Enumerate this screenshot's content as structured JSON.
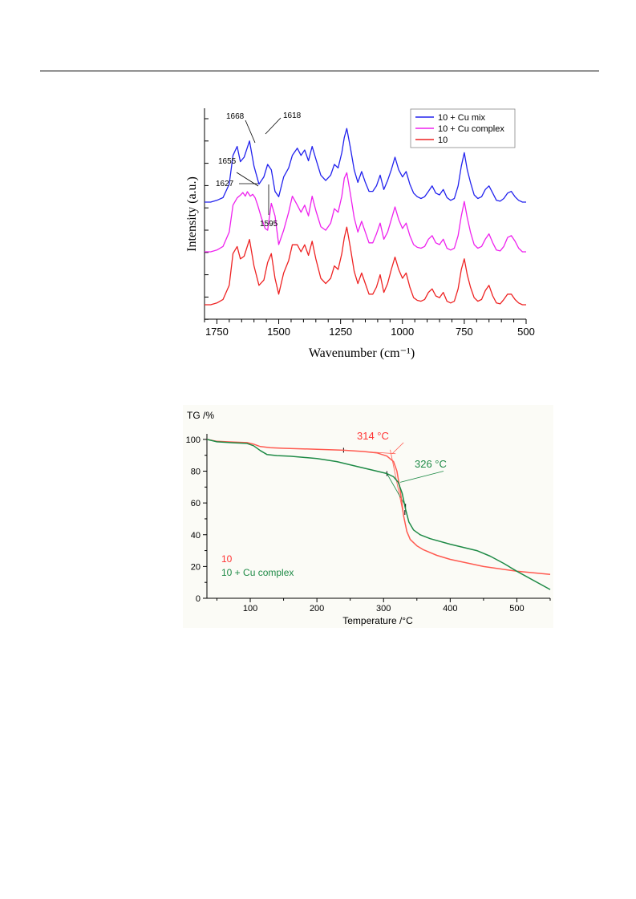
{
  "chart_data": [
    {
      "type": "line",
      "xlabel": "Wavenumber (cm⁻¹)",
      "ylabel": "Intensity (a.u.)",
      "xlim": [
        1800,
        500
      ],
      "x_reversed": true,
      "x_ticks": [
        "1750",
        "1500",
        "1250",
        "1000",
        "750",
        "500"
      ],
      "legend_position": "top-right",
      "series": [
        {
          "name": "10 + Cu mix",
          "color": "#2222ee",
          "x": [
            1800,
            1775,
            1750,
            1725,
            1700,
            1685,
            1668,
            1655,
            1640,
            1618,
            1600,
            1580,
            1560,
            1545,
            1530,
            1515,
            1500,
            1480,
            1460,
            1445,
            1425,
            1410,
            1395,
            1380,
            1365,
            1350,
            1330,
            1310,
            1290,
            1275,
            1260,
            1245,
            1235,
            1225,
            1210,
            1195,
            1180,
            1165,
            1150,
            1135,
            1120,
            1105,
            1090,
            1075,
            1060,
            1045,
            1030,
            1015,
            1000,
            985,
            970,
            955,
            940,
            925,
            910,
            895,
            880,
            865,
            850,
            835,
            820,
            805,
            790,
            775,
            762,
            750,
            738,
            725,
            710,
            695,
            680,
            665,
            650,
            635,
            620,
            605,
            590,
            575,
            560,
            545,
            530,
            515,
            500
          ],
          "y": [
            0.0,
            0.0,
            0.02,
            0.05,
            0.2,
            0.52,
            0.62,
            0.45,
            0.5,
            0.68,
            0.4,
            0.2,
            0.28,
            0.42,
            0.36,
            0.12,
            0.06,
            0.28,
            0.38,
            0.52,
            0.6,
            0.52,
            0.58,
            0.46,
            0.62,
            0.48,
            0.3,
            0.24,
            0.3,
            0.42,
            0.38,
            0.55,
            0.72,
            0.82,
            0.6,
            0.36,
            0.22,
            0.34,
            0.22,
            0.12,
            0.12,
            0.18,
            0.3,
            0.14,
            0.24,
            0.36,
            0.5,
            0.36,
            0.28,
            0.34,
            0.2,
            0.1,
            0.06,
            0.04,
            0.06,
            0.12,
            0.18,
            0.1,
            0.08,
            0.14,
            0.05,
            0.02,
            0.04,
            0.18,
            0.4,
            0.55,
            0.36,
            0.22,
            0.08,
            0.04,
            0.06,
            0.14,
            0.18,
            0.1,
            0.02,
            0.01,
            0.04,
            0.1,
            0.12,
            0.06,
            0.02,
            0.0,
            0.0
          ]
        },
        {
          "name": "10 + Cu complex",
          "color": "#ee22ee",
          "x": [
            1800,
            1775,
            1750,
            1725,
            1700,
            1685,
            1668,
            1655,
            1645,
            1635,
            1627,
            1615,
            1605,
            1595,
            1585,
            1570,
            1555,
            1545,
            1530,
            1515,
            1500,
            1480,
            1460,
            1445,
            1425,
            1410,
            1395,
            1380,
            1365,
            1350,
            1330,
            1310,
            1290,
            1275,
            1260,
            1245,
            1235,
            1225,
            1210,
            1195,
            1180,
            1165,
            1150,
            1135,
            1120,
            1105,
            1090,
            1075,
            1060,
            1045,
            1030,
            1015,
            1000,
            985,
            970,
            955,
            940,
            925,
            910,
            895,
            880,
            865,
            850,
            835,
            820,
            805,
            790,
            775,
            762,
            750,
            738,
            725,
            710,
            695,
            680,
            665,
            650,
            635,
            620,
            605,
            590,
            575,
            560,
            545,
            530,
            515,
            500
          ],
          "y": [
            0.0,
            0.0,
            0.02,
            0.06,
            0.22,
            0.52,
            0.6,
            0.63,
            0.66,
            0.62,
            0.67,
            0.62,
            0.64,
            0.6,
            0.52,
            0.38,
            0.26,
            0.24,
            0.54,
            0.4,
            0.08,
            0.24,
            0.44,
            0.62,
            0.52,
            0.44,
            0.52,
            0.4,
            0.62,
            0.46,
            0.28,
            0.24,
            0.32,
            0.48,
            0.44,
            0.62,
            0.82,
            0.88,
            0.64,
            0.38,
            0.22,
            0.34,
            0.22,
            0.1,
            0.1,
            0.2,
            0.32,
            0.14,
            0.22,
            0.36,
            0.5,
            0.36,
            0.26,
            0.32,
            0.18,
            0.08,
            0.05,
            0.04,
            0.06,
            0.14,
            0.18,
            0.1,
            0.08,
            0.14,
            0.04,
            0.02,
            0.04,
            0.18,
            0.4,
            0.56,
            0.38,
            0.22,
            0.08,
            0.04,
            0.06,
            0.14,
            0.2,
            0.1,
            0.02,
            0.01,
            0.06,
            0.16,
            0.18,
            0.12,
            0.04,
            0.0,
            0.0
          ]
        },
        {
          "name": "10",
          "color": "#ee2222",
          "x": [
            1800,
            1775,
            1750,
            1725,
            1700,
            1685,
            1668,
            1655,
            1640,
            1618,
            1600,
            1580,
            1560,
            1545,
            1530,
            1515,
            1500,
            1480,
            1460,
            1445,
            1425,
            1410,
            1395,
            1380,
            1365,
            1350,
            1330,
            1310,
            1290,
            1275,
            1260,
            1245,
            1235,
            1225,
            1210,
            1195,
            1180,
            1165,
            1150,
            1135,
            1120,
            1105,
            1090,
            1075,
            1060,
            1045,
            1030,
            1015,
            1000,
            985,
            970,
            955,
            940,
            925,
            910,
            895,
            880,
            865,
            850,
            835,
            820,
            805,
            790,
            775,
            762,
            750,
            738,
            725,
            710,
            695,
            680,
            665,
            650,
            635,
            620,
            605,
            590,
            575,
            560,
            545,
            530,
            515,
            500
          ],
          "y": [
            0.0,
            0.0,
            0.02,
            0.06,
            0.22,
            0.58,
            0.66,
            0.52,
            0.55,
            0.74,
            0.44,
            0.22,
            0.28,
            0.48,
            0.58,
            0.3,
            0.12,
            0.36,
            0.5,
            0.68,
            0.68,
            0.6,
            0.68,
            0.56,
            0.72,
            0.52,
            0.3,
            0.24,
            0.3,
            0.44,
            0.4,
            0.58,
            0.76,
            0.88,
            0.64,
            0.38,
            0.24,
            0.36,
            0.24,
            0.12,
            0.12,
            0.2,
            0.34,
            0.14,
            0.24,
            0.4,
            0.54,
            0.4,
            0.3,
            0.36,
            0.2,
            0.08,
            0.05,
            0.04,
            0.06,
            0.14,
            0.18,
            0.1,
            0.08,
            0.14,
            0.04,
            0.02,
            0.04,
            0.18,
            0.4,
            0.52,
            0.34,
            0.2,
            0.08,
            0.04,
            0.06,
            0.16,
            0.22,
            0.1,
            0.02,
            0.01,
            0.06,
            0.12,
            0.12,
            0.06,
            0.02,
            0.0,
            0.0
          ]
        }
      ],
      "annotations": [
        "1668",
        "1618",
        "1655",
        "1627",
        "1595"
      ]
    },
    {
      "type": "line",
      "title": "TG /%",
      "xlabel": "Temperature /°C",
      "ylabel": "TG /%",
      "xlim": [
        35,
        550
      ],
      "ylim": [
        0,
        105
      ],
      "x_ticks": [
        "100",
        "200",
        "300",
        "400",
        "500"
      ],
      "y_ticks": [
        "0",
        "20",
        "40",
        "60",
        "80",
        "100"
      ],
      "background": "#fbfbf6",
      "series": [
        {
          "name": "10",
          "color": "#ff5a50",
          "x": [
            35,
            50,
            75,
            95,
            105,
            115,
            130,
            150,
            200,
            240,
            270,
            290,
            305,
            315,
            320,
            325,
            330,
            335,
            340,
            350,
            360,
            380,
            400,
            450,
            500,
            550
          ],
          "y": [
            100,
            98.8,
            98.3,
            98.0,
            97.0,
            95.5,
            94.8,
            94.4,
            93.8,
            93.2,
            92.4,
            91.5,
            89.5,
            86.0,
            80.0,
            68.0,
            52.0,
            42.0,
            37.0,
            33.0,
            30.5,
            27.0,
            24.5,
            20.0,
            17.0,
            15.0
          ]
        },
        {
          "name": "10 + Cu complex",
          "color": "#1e8a46",
          "x": [
            35,
            50,
            75,
            95,
            105,
            115,
            125,
            140,
            160,
            200,
            230,
            260,
            290,
            305,
            315,
            322,
            328,
            333,
            338,
            345,
            355,
            370,
            400,
            440,
            460,
            480,
            500,
            550
          ],
          "y": [
            100,
            98.5,
            97.9,
            97.5,
            96.0,
            93.0,
            90.5,
            89.8,
            89.4,
            88.0,
            86.0,
            83.0,
            80.0,
            78.5,
            76.5,
            73.0,
            66.0,
            56.0,
            48.0,
            43.0,
            40.0,
            37.5,
            34.0,
            30.0,
            26.5,
            22.0,
            17.0,
            5.5
          ]
        }
      ],
      "annotations": [
        {
          "text": "314 °C",
          "color": "#ff3333"
        },
        {
          "text": "326 °C",
          "color": "#1e8a46"
        }
      ],
      "legend_position": "bottom-left"
    }
  ]
}
